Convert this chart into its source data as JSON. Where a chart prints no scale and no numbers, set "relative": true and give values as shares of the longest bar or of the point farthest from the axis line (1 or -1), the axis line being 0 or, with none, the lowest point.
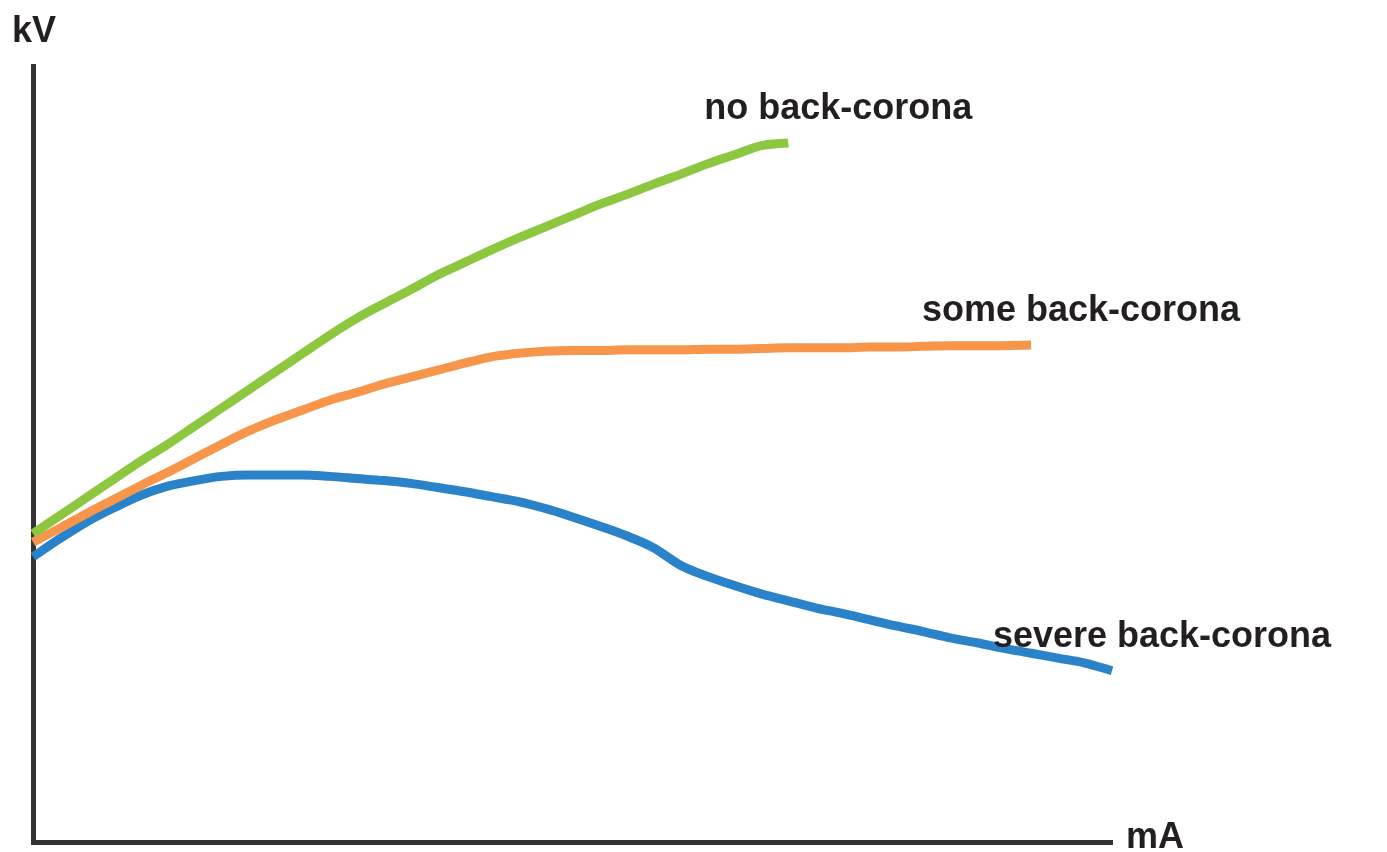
{
  "chart_data": {
    "type": "line",
    "xlabel": "mA",
    "ylabel": "kV",
    "relative": true,
    "line_style": "solid",
    "marker": "none",
    "categories": [
      null,
      null,
      null,
      null,
      null,
      null,
      null,
      null,
      null,
      null,
      null,
      null,
      null,
      null,
      null,
      null,
      null,
      null,
      null,
      null,
      null,
      null,
      null,
      null,
      null,
      null,
      null,
      null,
      null,
      null,
      null,
      null,
      null,
      null,
      null,
      null,
      null,
      null,
      null,
      null,
      null
    ],
    "series": [
      {
        "name": "no back-corona",
        "color": "#8dc63f",
        "values": [
          0.441,
          0.467,
          0.493,
          0.519,
          0.545,
          0.569,
          0.595,
          0.621,
          0.647,
          0.673,
          0.699,
          0.725,
          0.749,
          0.77,
          0.79,
          0.811,
          0.829,
          0.847,
          0.864,
          0.88,
          0.896,
          0.912,
          0.926,
          0.941,
          0.955,
          0.97,
          0.983,
          0.996,
          1,
          null,
          null,
          null,
          null,
          null,
          null,
          null,
          null,
          null,
          null,
          null,
          null
        ]
      },
      {
        "name": "some back-corona",
        "color": "#f7964a",
        "values": [
          0.429,
          0.449,
          0.47,
          0.49,
          0.51,
          0.529,
          0.549,
          0.569,
          0.588,
          0.604,
          0.618,
          0.632,
          0.643,
          0.655,
          0.665,
          0.675,
          0.685,
          0.694,
          0.699,
          0.702,
          0.703,
          0.703,
          0.704,
          0.704,
          0.704,
          0.705,
          0.705,
          0.706,
          0.707,
          0.707,
          0.707,
          0.708,
          0.708,
          0.709,
          0.71,
          0.71,
          0.71,
          0.711,
          null,
          null,
          null
        ]
      },
      {
        "name": "severe back-corona",
        "color": "#2a82c8",
        "values": [
          0.408,
          0.434,
          0.458,
          0.478,
          0.496,
          0.509,
          0.517,
          0.523,
          0.525,
          0.525,
          0.525,
          0.523,
          0.52,
          0.517,
          0.513,
          0.507,
          0.501,
          0.494,
          0.487,
          0.477,
          0.465,
          0.452,
          0.438,
          0.421,
          0.396,
          0.38,
          0.367,
          0.355,
          0.345,
          0.335,
          0.327,
          0.318,
          0.309,
          0.301,
          0.292,
          0.285,
          0.277,
          0.27,
          0.263,
          0.256,
          0.245
        ]
      }
    ]
  }
}
